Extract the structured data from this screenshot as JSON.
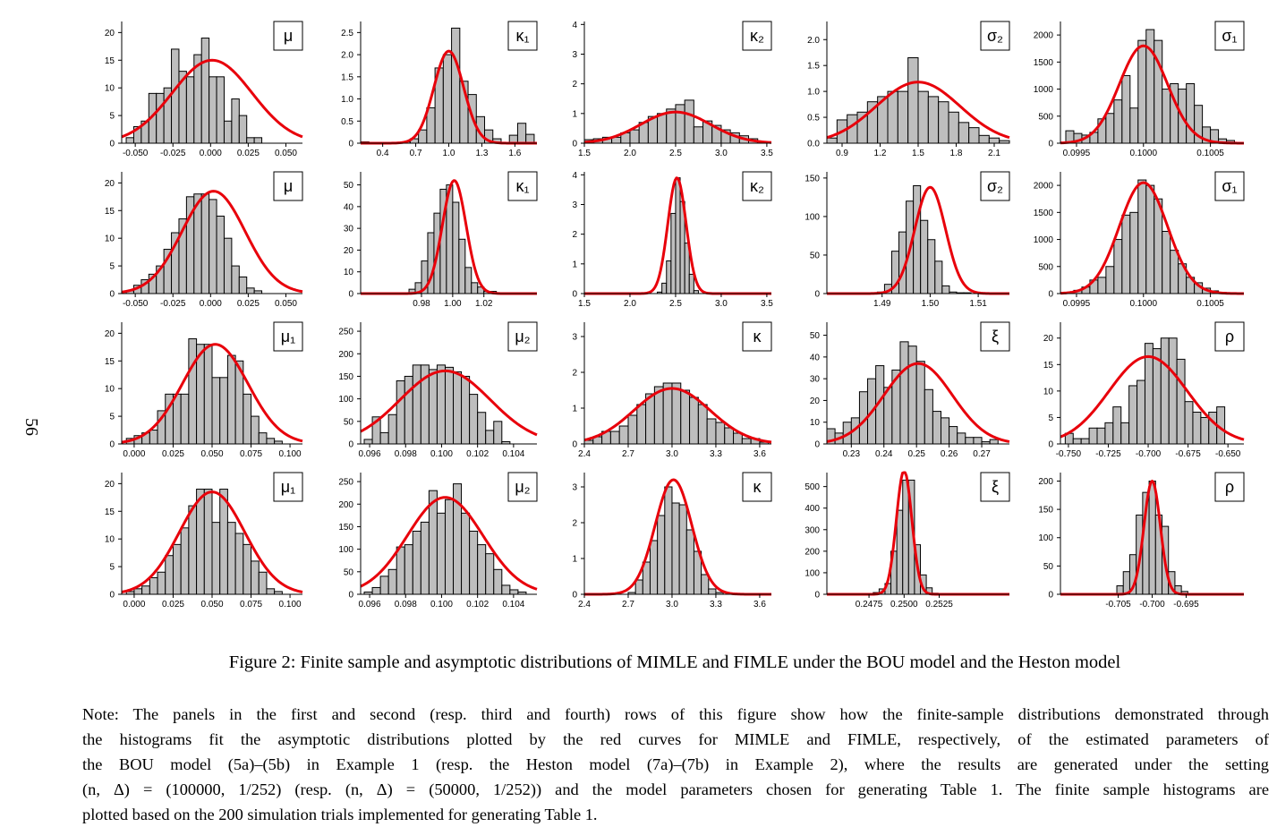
{
  "page_number": "56",
  "caption": "Figure 2: Finite sample and asymptotic distributions of MIMLE and FIMLE under the BOU model and the Heston model",
  "note_lines": [
    "Note: The panels in the first and second (resp. third and fourth) rows of this figure show how the finite-sample distributions demonstrated through",
    "the histograms fit the asymptotic distributions plotted by the red curves for MIMLE and FIMLE, respectively, of the estimated parameters of",
    "the BOU model (5a)–(5b) in Example 1 (resp. the Heston model (7a)–(7b) in Example 2), where the results are generated under the setting",
    "(n, Δ) = (100000, 1/252) (resp. (n, Δ) = (50000, 1/252)) and the model parameters chosen for generating Table 1. The finite sample histograms are",
    "plotted based on the 200 simulation trials implemented for generating Table 1."
  ],
  "colors": {
    "bar_fill": "#bebebe",
    "bar_stroke": "#000000",
    "curve": "#e8000b"
  },
  "chart_data": [
    {
      "type": "bar",
      "row": 1,
      "label": "μ",
      "x_range": [
        -0.059,
        0.061
      ],
      "ylim": [
        0,
        22
      ],
      "xticks": [
        -0.05,
        -0.025,
        0,
        0.025,
        0.05
      ],
      "xtick_labels": [
        "-0.050",
        "-0.025",
        "0.000",
        "0.025",
        "0.050"
      ],
      "yticks": [
        0,
        5,
        10,
        15,
        20
      ],
      "ytick_labels": [
        "0",
        "5",
        "10",
        "15",
        "20"
      ],
      "bin_start": -0.056,
      "bin_width": 0.005,
      "counts": [
        1,
        3,
        4,
        9,
        9,
        10,
        17,
        13,
        12,
        16,
        19,
        12,
        12,
        4,
        8,
        5,
        1,
        1
      ],
      "curve": {
        "mean": 0.001,
        "sd": 0.0265,
        "peak": 15
      }
    },
    {
      "type": "bar",
      "row": 1,
      "label": "κ₁",
      "x_range": [
        0.2,
        1.8
      ],
      "ylim": [
        0,
        2.75
      ],
      "xticks": [
        0.4,
        0.7,
        1,
        1.3,
        1.6
      ],
      "xtick_labels": [
        "0.4",
        "0.7",
        "1.0",
        "1.3",
        "1.6"
      ],
      "yticks": [
        0,
        0.5,
        1,
        1.5,
        2,
        2.5
      ],
      "ytick_labels": [
        "0",
        "0.5",
        "1.0",
        "1.5",
        "2.0",
        "2.5"
      ],
      "bin_start": 0.2,
      "bin_width": 0.075,
      "counts": [
        0.03,
        0,
        0,
        0,
        0,
        0.03,
        0.1,
        0.3,
        0.8,
        1.7,
        2,
        2.6,
        1.4,
        1.1,
        0.6,
        0.3,
        0.1,
        0.02,
        0.18,
        0.45,
        0.2
      ],
      "curve": {
        "mean": 1,
        "sd": 0.135,
        "peak": 2.08
      }
    },
    {
      "type": "bar",
      "row": 1,
      "label": "κ₂",
      "x_range": [
        1.5,
        3.55
      ],
      "ylim": [
        0,
        4.1
      ],
      "xticks": [
        1.5,
        2,
        2.5,
        3,
        3.5
      ],
      "xtick_labels": [
        "1.5",
        "2.0",
        "2.5",
        "3.0",
        "3.5"
      ],
      "yticks": [
        0,
        1,
        2,
        3,
        4
      ],
      "ytick_labels": [
        "0",
        "1",
        "2",
        "3",
        "4"
      ],
      "bin_start": 1.5,
      "bin_width": 0.1,
      "counts": [
        0.12,
        0.15,
        0.2,
        0.2,
        0.35,
        0.45,
        0.7,
        0.9,
        1,
        1.15,
        1.3,
        1.45,
        0.55,
        0.75,
        0.6,
        0.45,
        0.35,
        0.25,
        0.15,
        0.05
      ],
      "curve": {
        "mean": 2.5,
        "sd": 0.38,
        "peak": 1.05
      }
    },
    {
      "type": "bar",
      "row": 1,
      "label": "σ₂",
      "x_range": [
        0.78,
        2.22
      ],
      "ylim": [
        0,
        2.35
      ],
      "xticks": [
        0.9,
        1.2,
        1.5,
        1.8,
        2.1
      ],
      "xtick_labels": [
        "0.9",
        "1.2",
        "1.5",
        "1.8",
        "2.1"
      ],
      "yticks": [
        0,
        0.5,
        1,
        1.5,
        2
      ],
      "ytick_labels": [
        "0.0",
        "0.5",
        "1.0",
        "1.5",
        "2.0"
      ],
      "bin_start": 0.78,
      "bin_width": 0.08,
      "counts": [
        0.1,
        0.45,
        0.55,
        0.6,
        0.8,
        0.9,
        1,
        1,
        1.65,
        1,
        0.9,
        0.8,
        0.6,
        0.4,
        0.3,
        0.15,
        0.1,
        0.05
      ],
      "curve": {
        "mean": 1.5,
        "sd": 0.33,
        "peak": 1.18
      }
    },
    {
      "type": "bar",
      "row": 1,
      "label": "σ₁",
      "x_range": [
        0.09938,
        0.10075
      ],
      "ylim": [
        0,
        2250
      ],
      "xticks": [
        0.0995,
        0.1,
        0.1005
      ],
      "xtick_labels": [
        "0.0995",
        "0.1000",
        "0.1005"
      ],
      "yticks": [
        0,
        500,
        1000,
        1500,
        2000
      ],
      "ytick_labels": [
        "0",
        "500",
        "1000",
        "1500",
        "2000"
      ],
      "bin_start": 0.09942,
      "bin_width": 6e-05,
      "counts": [
        230,
        180,
        150,
        200,
        450,
        550,
        800,
        1250,
        650,
        1900,
        2100,
        1900,
        1000,
        1100,
        1000,
        1100,
        700,
        300,
        250,
        80,
        50
      ],
      "curve": {
        "mean": 0.1,
        "sd": 0.00018,
        "peak": 1800
      }
    },
    {
      "type": "bar",
      "row": 2,
      "label": "μ",
      "x_range": [
        -0.059,
        0.061
      ],
      "ylim": [
        0,
        22
      ],
      "xticks": [
        -0.05,
        -0.025,
        0,
        0.025,
        0.05
      ],
      "xtick_labels": [
        "-0.050",
        "-0.025",
        "0.000",
        "0.025",
        "0.050"
      ],
      "yticks": [
        0,
        5,
        10,
        15,
        20
      ],
      "ytick_labels": [
        "0",
        "5",
        "10",
        "15",
        "20"
      ],
      "bin_start": -0.056,
      "bin_width": 0.005,
      "counts": [
        0.5,
        1.5,
        2.5,
        3.5,
        5,
        8,
        11,
        13.5,
        17.5,
        18,
        18,
        17,
        14,
        10,
        5,
        3,
        1,
        0.5
      ],
      "curve": {
        "mean": 0.002,
        "sd": 0.021,
        "peak": 18.5
      }
    },
    {
      "type": "bar",
      "row": 2,
      "label": "κ₁",
      "x_range": [
        0.941,
        1.054
      ],
      "ylim": [
        0,
        56
      ],
      "xticks": [
        0.98,
        1,
        1.02
      ],
      "xtick_labels": [
        "0.98",
        "1.00",
        "1.02"
      ],
      "yticks": [
        0,
        10,
        20,
        30,
        40,
        50
      ],
      "ytick_labels": [
        "0",
        "10",
        "20",
        "30",
        "40",
        "50"
      ],
      "bin_start": 0.972,
      "bin_width": 0.004,
      "counts": [
        2,
        5,
        15,
        28,
        37,
        48,
        50,
        42,
        25,
        12,
        5,
        3,
        1,
        1
      ],
      "curve": {
        "mean": 1.001,
        "sd": 0.0076,
        "peak": 52
      }
    },
    {
      "type": "bar",
      "row": 2,
      "label": "κ₂",
      "x_range": [
        1.5,
        3.55
      ],
      "ylim": [
        0,
        4.1
      ],
      "xticks": [
        1.5,
        2,
        2.5,
        3,
        3.5
      ],
      "xtick_labels": [
        "1.5",
        "2.0",
        "2.5",
        "3.0",
        "3.5"
      ],
      "yticks": [
        0,
        1,
        2,
        3,
        4
      ],
      "ytick_labels": [
        "0",
        "1",
        "2",
        "3",
        "4"
      ],
      "bin_start": 2.3,
      "bin_width": 0.05,
      "counts": [
        0.05,
        0.35,
        1.1,
        2.7,
        3.9,
        3.1,
        1.7,
        0.65,
        0.1
      ],
      "curve": {
        "mean": 2.515,
        "sd": 0.1,
        "peak": 3.9
      }
    },
    {
      "type": "bar",
      "row": 2,
      "label": "σ₂",
      "x_range": [
        1.4785,
        1.5165
      ],
      "ylim": [
        0,
        158
      ],
      "xticks": [
        1.49,
        1.5,
        1.51
      ],
      "xtick_labels": [
        "1.49",
        "1.50",
        "1.51"
      ],
      "yticks": [
        0,
        50,
        100,
        150
      ],
      "ytick_labels": [
        "0",
        "50",
        "100",
        "150"
      ],
      "bin_start": 1.489,
      "bin_width": 0.0015,
      "counts": [
        2,
        12,
        55,
        80,
        120,
        140,
        95,
        70,
        42,
        10,
        2,
        1,
        1
      ],
      "curve": {
        "mean": 1.5,
        "sd": 0.0032,
        "peak": 138
      }
    },
    {
      "type": "bar",
      "row": 2,
      "label": "σ₁",
      "x_range": [
        0.09938,
        0.10075
      ],
      "ylim": [
        0,
        2250
      ],
      "xticks": [
        0.0995,
        0.1,
        0.1005
      ],
      "xtick_labels": [
        "0.0995",
        "0.1000",
        "0.1005"
      ],
      "yticks": [
        0,
        500,
        1000,
        1500,
        2000
      ],
      "ytick_labels": [
        "0",
        "500",
        "1000",
        "1500",
        "2000"
      ],
      "bin_start": 0.09942,
      "bin_width": 6e-05,
      "counts": [
        20,
        60,
        120,
        250,
        300,
        500,
        1000,
        1450,
        1500,
        2100,
        2000,
        1750,
        1150,
        800,
        550,
        300,
        200,
        100,
        50,
        20,
        10
      ],
      "curve": {
        "mean": 0.1,
        "sd": 0.00018,
        "peak": 2050
      }
    },
    {
      "type": "bar",
      "row": 3,
      "label": "μ₁",
      "x_range": [
        -0.008,
        0.108
      ],
      "ylim": [
        0,
        22
      ],
      "xticks": [
        0,
        0.025,
        0.05,
        0.075,
        0.1
      ],
      "xtick_labels": [
        "0.000",
        "0.025",
        "0.050",
        "0.075",
        "0.100"
      ],
      "yticks": [
        0,
        5,
        10,
        15,
        20
      ],
      "ytick_labels": [
        "0",
        "5",
        "10",
        "15",
        "20"
      ],
      "bin_start": -0.005,
      "bin_width": 0.005,
      "counts": [
        1,
        1.5,
        2,
        2.5,
        6,
        9,
        9,
        9,
        19,
        18,
        18,
        12,
        12,
        16,
        15,
        9,
        5,
        2,
        1,
        0.5
      ],
      "curve": {
        "mean": 0.052,
        "sd": 0.021,
        "peak": 18
      }
    },
    {
      "type": "bar",
      "row": 3,
      "label": "μ₂",
      "x_range": [
        0.0955,
        0.1053
      ],
      "ylim": [
        0,
        270
      ],
      "xticks": [
        0.096,
        0.098,
        0.1,
        0.102,
        0.104
      ],
      "xtick_labels": [
        "0.096",
        "0.098",
        "0.100",
        "0.102",
        "0.104"
      ],
      "yticks": [
        0,
        50,
        100,
        150,
        200,
        250
      ],
      "ytick_labels": [
        "0",
        "50",
        "100",
        "150",
        "200",
        "250"
      ],
      "bin_start": 0.0957,
      "bin_width": 0.00045,
      "counts": [
        10,
        60,
        25,
        65,
        140,
        150,
        175,
        175,
        165,
        175,
        170,
        160,
        150,
        110,
        70,
        30,
        50,
        5
      ],
      "curve": {
        "mean": 0.1002,
        "sd": 0.0025,
        "peak": 162
      }
    },
    {
      "type": "bar",
      "row": 3,
      "label": "κ",
      "x_range": [
        2.4,
        3.68
      ],
      "ylim": [
        0,
        3.4
      ],
      "xticks": [
        2.4,
        2.7,
        3,
        3.3,
        3.6
      ],
      "xtick_labels": [
        "2.4",
        "2.7",
        "3.0",
        "3.3",
        "3.6"
      ],
      "yticks": [
        0,
        1,
        2,
        3
      ],
      "ytick_labels": [
        "0",
        "1",
        "2",
        "3"
      ],
      "bin_start": 2.4,
      "bin_width": 0.06,
      "counts": [
        0.1,
        0.2,
        0.35,
        0.35,
        0.5,
        0.8,
        1.1,
        1.4,
        1.6,
        1.7,
        1.7,
        1.5,
        1.3,
        1.1,
        0.7,
        0.6,
        0.45,
        0.3,
        0.15,
        0.15,
        0.05
      ],
      "curve": {
        "mean": 3,
        "sd": 0.26,
        "peak": 1.55
      }
    },
    {
      "type": "bar",
      "row": 3,
      "label": "ξ",
      "x_range": [
        0.2225,
        0.2785
      ],
      "ylim": [
        0,
        56
      ],
      "xticks": [
        0.23,
        0.24,
        0.25,
        0.26,
        0.27
      ],
      "xtick_labels": [
        "0.23",
        "0.24",
        "0.25",
        "0.26",
        "0.27"
      ],
      "yticks": [
        0,
        10,
        20,
        30,
        40,
        50
      ],
      "ytick_labels": [
        "0",
        "10",
        "20",
        "30",
        "40",
        "50"
      ],
      "bin_start": 0.2225,
      "bin_width": 0.0025,
      "counts": [
        7,
        5,
        10,
        12,
        24,
        30,
        36,
        26,
        34,
        47,
        45,
        38,
        25,
        15,
        12,
        8,
        5,
        3,
        3,
        1,
        2
      ],
      "curve": {
        "mean": 0.2505,
        "sd": 0.0105,
        "peak": 37
      }
    },
    {
      "type": "bar",
      "row": 3,
      "label": "ρ",
      "x_range": [
        -0.755,
        -0.64
      ],
      "ylim": [
        0,
        23
      ],
      "xticks": [
        -0.75,
        -0.725,
        -0.7,
        -0.675,
        -0.65
      ],
      "xtick_labels": [
        "-0.750",
        "-0.725",
        "-0.700",
        "-0.675",
        "-0.650"
      ],
      "yticks": [
        0,
        5,
        10,
        15,
        20
      ],
      "ytick_labels": [
        "0",
        "5",
        "10",
        "15",
        "20"
      ],
      "bin_start": -0.752,
      "bin_width": 0.005,
      "counts": [
        2,
        1,
        1,
        3,
        3,
        4,
        7,
        4,
        11,
        12,
        19,
        18,
        20,
        20,
        16,
        8,
        6,
        5,
        6,
        7,
        0
      ],
      "curve": {
        "mean": -0.7,
        "sd": 0.0245,
        "peak": 16.5
      }
    },
    {
      "type": "bar",
      "row": 4,
      "label": "μ₁",
      "x_range": [
        -0.008,
        0.108
      ],
      "ylim": [
        0,
        22
      ],
      "xticks": [
        0,
        0.025,
        0.05,
        0.075,
        0.1
      ],
      "xtick_labels": [
        "0.000",
        "0.025",
        "0.050",
        "0.075",
        "0.100"
      ],
      "yticks": [
        0,
        5,
        10,
        15,
        20
      ],
      "ytick_labels": [
        "0",
        "5",
        "10",
        "15",
        "20"
      ],
      "bin_start": -0.005,
      "bin_width": 0.005,
      "counts": [
        0.5,
        1,
        1.5,
        3,
        4,
        7,
        9,
        12,
        16,
        19,
        19,
        13,
        19,
        13,
        11,
        9,
        6,
        4,
        1,
        0.5
      ],
      "curve": {
        "mean": 0.05,
        "sd": 0.021,
        "peak": 18.5
      }
    },
    {
      "type": "bar",
      "row": 4,
      "label": "μ₂",
      "x_range": [
        0.0955,
        0.1053
      ],
      "ylim": [
        0,
        270
      ],
      "xticks": [
        0.096,
        0.098,
        0.1,
        0.102,
        0.104
      ],
      "xtick_labels": [
        "0.096",
        "0.098",
        "0.100",
        "0.102",
        "0.104"
      ],
      "yticks": [
        0,
        50,
        100,
        150,
        200,
        250
      ],
      "ytick_labels": [
        "0",
        "50",
        "100",
        "150",
        "200",
        "250"
      ],
      "bin_start": 0.0957,
      "bin_width": 0.00045,
      "counts": [
        5,
        15,
        40,
        55,
        105,
        110,
        140,
        160,
        230,
        180,
        210,
        245,
        180,
        140,
        110,
        90,
        55,
        20,
        10,
        5
      ],
      "curve": {
        "mean": 0.1002,
        "sd": 0.0021,
        "peak": 215
      }
    },
    {
      "type": "bar",
      "row": 4,
      "label": "κ",
      "x_range": [
        2.4,
        3.68
      ],
      "ylim": [
        0,
        3.4
      ],
      "xticks": [
        2.4,
        2.7,
        3,
        3.3,
        3.6
      ],
      "xtick_labels": [
        "2.4",
        "2.7",
        "3.0",
        "3.3",
        "3.6"
      ],
      "yticks": [
        0,
        1,
        2,
        3
      ],
      "ytick_labels": [
        "0",
        "1",
        "2",
        "3"
      ],
      "bin_start": 2.7,
      "bin_width": 0.05,
      "counts": [
        0.05,
        0.4,
        0.9,
        1.5,
        2.2,
        3,
        2.55,
        2.5,
        1.8,
        1.2,
        0.55,
        0.15,
        0.05
      ],
      "curve": {
        "mean": 3.01,
        "sd": 0.125,
        "peak": 3.2
      }
    },
    {
      "type": "bar",
      "row": 4,
      "label": "ξ",
      "x_range": [
        0.2445,
        0.2575
      ],
      "ylim": [
        0,
        565
      ],
      "xticks": [
        0.2475,
        0.25,
        0.2525
      ],
      "xtick_labels": [
        "0.2475",
        "0.2500",
        "0.2525"
      ],
      "yticks": [
        0,
        100,
        200,
        300,
        400,
        500
      ],
      "ytick_labels": [
        "0",
        "100",
        "200",
        "300",
        "400",
        "500"
      ],
      "bin_start": 0.2478,
      "bin_width": 0.00042,
      "counts": [
        8,
        25,
        50,
        200,
        390,
        530,
        530,
        230,
        90,
        30,
        5
      ],
      "curve": {
        "mean": 0.25,
        "sd": 0.00055,
        "peak": 575
      }
    },
    {
      "type": "bar",
      "row": 4,
      "label": "ρ",
      "x_range": [
        -0.7135,
        -0.6865
      ],
      "ylim": [
        0,
        215
      ],
      "xticks": [
        -0.705,
        -0.7,
        -0.695
      ],
      "xtick_labels": [
        "-0.705",
        "-0.700",
        "-0.695"
      ],
      "yticks": [
        0,
        50,
        100,
        150,
        200
      ],
      "ytick_labels": [
        "0",
        "50",
        "100",
        "150",
        "200"
      ],
      "bin_start": -0.7052,
      "bin_width": 0.00095,
      "counts": [
        15,
        40,
        70,
        140,
        180,
        200,
        140,
        120,
        40,
        15,
        5
      ],
      "curve": {
        "mean": -0.7,
        "sd": 0.0012,
        "peak": 200
      }
    }
  ]
}
